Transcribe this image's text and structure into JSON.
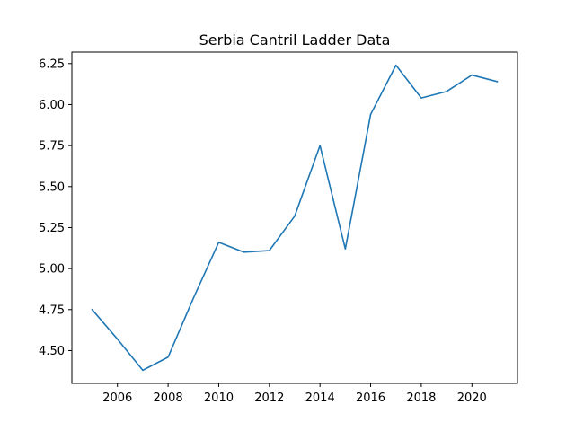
{
  "chart_data": {
    "type": "line",
    "title": "Serbia Cantril Ladder Data",
    "xlabel": "",
    "ylabel": "",
    "xlim": [
      2004.2,
      2021.8
    ],
    "ylim": [
      4.3,
      6.32
    ],
    "grid": false,
    "x_ticks": [
      2006,
      2008,
      2010,
      2012,
      2014,
      2016,
      2018,
      2020
    ],
    "y_ticks": [
      4.5,
      4.75,
      5.0,
      5.25,
      5.5,
      5.75,
      6.0,
      6.25
    ],
    "x_tick_labels": [
      "2006",
      "2008",
      "2010",
      "2012",
      "2014",
      "2016",
      "2018",
      "2020"
    ],
    "y_tick_labels": [
      "4.50",
      "4.75",
      "5.00",
      "5.25",
      "5.50",
      "5.75",
      "6.00",
      "6.25"
    ],
    "series": [
      {
        "color": "#1f77b4",
        "x": [
          2005,
          2006,
          2007,
          2008,
          2009,
          2010,
          2011,
          2012,
          2013,
          2014,
          2015,
          2016,
          2017,
          2018,
          2019,
          2020,
          2021
        ],
        "y": [
          4.75,
          4.57,
          4.38,
          4.46,
          4.82,
          5.16,
          5.1,
          5.11,
          5.32,
          5.75,
          5.12,
          5.94,
          6.24,
          6.04,
          6.08,
          6.18,
          6.14
        ]
      }
    ]
  }
}
